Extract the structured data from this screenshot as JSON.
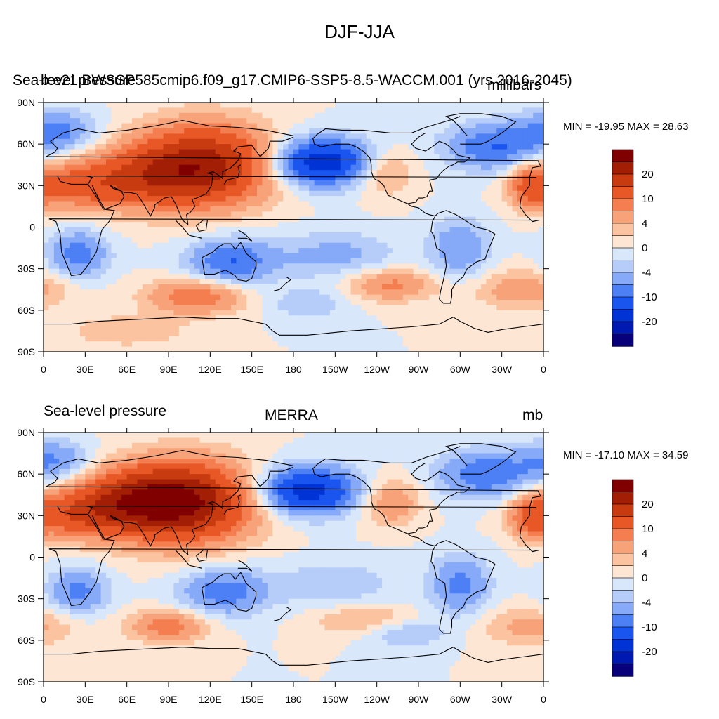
{
  "main_title": "DJF-JJA",
  "colors": {
    "levels": [
      "#08007a",
      "#0019b0",
      "#0033d6",
      "#1a55f0",
      "#4d7ff5",
      "#86a9f8",
      "#b7cdf9",
      "#d9e7fb",
      "#fde6d4",
      "#fbc3a0",
      "#f8a27a",
      "#f47e4f",
      "#e85726",
      "#c83a10",
      "#a21e05",
      "#800000"
    ],
    "coast": "#000000"
  },
  "colorbar_labels": [
    "20",
    "10",
    "4",
    "0",
    "-4",
    "-10",
    "-20"
  ],
  "x_ticks": [
    "0",
    "30E",
    "60E",
    "90E",
    "120E",
    "150E",
    "180",
    "150W",
    "120W",
    "90W",
    "60W",
    "30W",
    "0"
  ],
  "y_ticks": [
    "90N",
    "60N",
    "30N",
    "0",
    "30S",
    "60S",
    "90S"
  ],
  "panels": [
    {
      "left_title": "Sea-level pressure",
      "center_title": "b.e21.BWSSP585cmip6.f09_g17.CMIP6-SSP5-8.5-WACCM.001 (yrs 2016-2045)",
      "units": "millibars",
      "minmax": "MIN = -19.95 MAX =  28.63"
    },
    {
      "left_title": "Sea-level pressure",
      "center_title": "MERRA",
      "units": "mb",
      "minmax": "MIN = -17.10 MAX =  34.59"
    }
  ],
  "fields": [
    [
      {
        "lon": 115,
        "lat": 45,
        "amp": 22,
        "slon": 35,
        "slat": 20
      },
      {
        "lon": 70,
        "lat": 35,
        "amp": 10,
        "slon": 30,
        "slat": 15
      },
      {
        "lon": 20,
        "lat": 30,
        "amp": 10,
        "slon": 25,
        "slat": 12
      },
      {
        "lon": -115,
        "lat": 40,
        "amp": 6,
        "slon": 15,
        "slat": 12
      },
      {
        "lon": -10,
        "lat": 30,
        "amp": 9,
        "slon": 10,
        "slat": 12
      },
      {
        "lon": -160,
        "lat": 47,
        "amp": -19,
        "slon": 25,
        "slat": 12
      },
      {
        "lon": -35,
        "lat": 58,
        "amp": -10,
        "slon": 25,
        "slat": 12
      },
      {
        "lon": 10,
        "lat": 70,
        "amp": -8,
        "slon": 20,
        "slat": 10
      },
      {
        "lon": 135,
        "lat": -25,
        "amp": -10,
        "slon": 22,
        "slat": 12
      },
      {
        "lon": 25,
        "lat": -20,
        "amp": -9,
        "slon": 15,
        "slat": 12
      },
      {
        "lon": -60,
        "lat": -15,
        "amp": -7,
        "slon": 15,
        "slat": 15
      },
      {
        "lon": -150,
        "lat": -20,
        "amp": -5,
        "slon": 30,
        "slat": 12
      },
      {
        "lon": 110,
        "lat": -50,
        "amp": 10,
        "slon": 25,
        "slat": 9
      },
      {
        "lon": -110,
        "lat": -42,
        "amp": 8,
        "slon": 22,
        "slat": 8
      },
      {
        "lon": -15,
        "lat": -45,
        "amp": 6,
        "slon": 25,
        "slat": 10
      },
      {
        "lon": -170,
        "lat": -55,
        "amp": -4,
        "slon": 20,
        "slat": 8
      },
      {
        "lon": 60,
        "lat": -75,
        "amp": 4,
        "slon": 30,
        "slat": 8
      }
    ],
    [
      {
        "lon": 100,
        "lat": 40,
        "amp": 25,
        "slon": 35,
        "slat": 20
      },
      {
        "lon": 60,
        "lat": 40,
        "amp": 12,
        "slon": 30,
        "slat": 15
      },
      {
        "lon": 20,
        "lat": 30,
        "amp": 10,
        "slon": 25,
        "slat": 12
      },
      {
        "lon": -110,
        "lat": 40,
        "amp": 7,
        "slon": 15,
        "slat": 12
      },
      {
        "lon": -10,
        "lat": 30,
        "amp": 8,
        "slon": 10,
        "slat": 12
      },
      {
        "lon": -170,
        "lat": 48,
        "amp": -18,
        "slon": 25,
        "slat": 12
      },
      {
        "lon": -40,
        "lat": 60,
        "amp": -10,
        "slon": 25,
        "slat": 12
      },
      {
        "lon": 10,
        "lat": 70,
        "amp": -7,
        "slon": 18,
        "slat": 10
      },
      {
        "lon": 130,
        "lat": -25,
        "amp": -9,
        "slon": 22,
        "slat": 12
      },
      {
        "lon": 25,
        "lat": -25,
        "amp": -8,
        "slon": 15,
        "slat": 12
      },
      {
        "lon": -60,
        "lat": -20,
        "amp": -8,
        "slon": 15,
        "slat": 15
      },
      {
        "lon": -150,
        "lat": -20,
        "amp": -4,
        "slon": 30,
        "slat": 12
      },
      {
        "lon": 90,
        "lat": -50,
        "amp": 9,
        "slon": 20,
        "slat": 8
      },
      {
        "lon": -130,
        "lat": -45,
        "amp": 5,
        "slon": 25,
        "slat": 8
      },
      {
        "lon": -100,
        "lat": -55,
        "amp": -5,
        "slon": 20,
        "slat": 7
      },
      {
        "lon": -10,
        "lat": -50,
        "amp": 5,
        "slon": 25,
        "slat": 10
      }
    ]
  ]
}
